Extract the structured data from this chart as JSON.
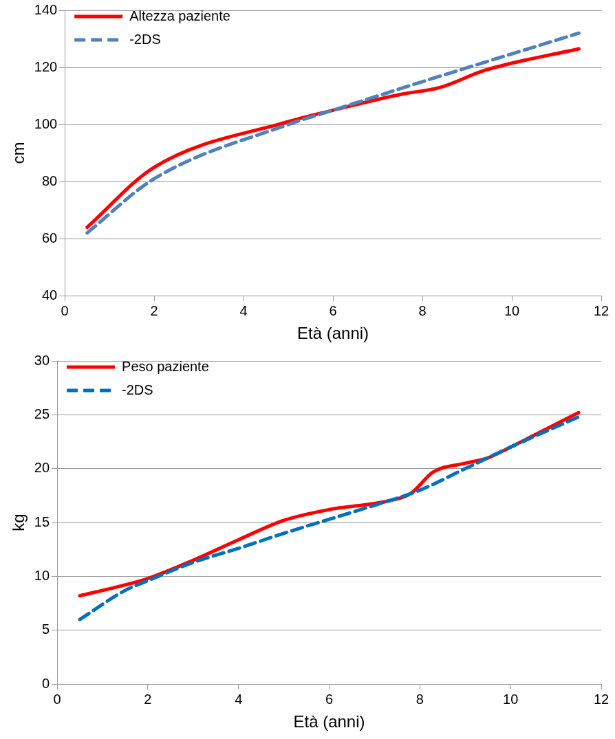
{
  "chart_data": [
    {
      "type": "line",
      "xlabel": "Età (anni)",
      "ylabel": "cm",
      "xlim": [
        0,
        12
      ],
      "xticks": [
        0,
        2,
        4,
        6,
        8,
        10,
        12
      ],
      "ylim": [
        40,
        140
      ],
      "yticks": [
        40,
        60,
        80,
        100,
        120,
        140
      ],
      "grid": "y",
      "legend": "top left",
      "marker": "none",
      "series": [
        {
          "name": "Altezza paziente",
          "color": "#ff0000",
          "line_style": "solid",
          "x": [
            0.5,
            2,
            5,
            6,
            7.5,
            8.4,
            9.4,
            11.5
          ],
          "values": [
            64,
            85,
            101,
            105,
            110.5,
            113,
            119,
            126.5
          ]
        },
        {
          "name": "-2DS",
          "color": "#4f81bd",
          "line_style": "dashed",
          "x": [
            0.5,
            2,
            5,
            6,
            8,
            11.5
          ],
          "values": [
            62,
            81,
            100,
            105,
            115,
            132
          ]
        }
      ]
    },
    {
      "type": "line",
      "xlabel": "Età (anni)",
      "ylabel": "kg",
      "xlim": [
        0,
        12
      ],
      "xticks": [
        0,
        2,
        4,
        6,
        8,
        10,
        12
      ],
      "ylim": [
        0,
        30
      ],
      "yticks": [
        0,
        5,
        10,
        15,
        20,
        25,
        30
      ],
      "grid": "y",
      "legend": "top left",
      "marker": "none",
      "series": [
        {
          "name": "Peso paziente",
          "color": "#ff0000",
          "line_style": "solid",
          "x": [
            0.5,
            1.3,
            2,
            3,
            4,
            5,
            6,
            7.3,
            7.8,
            8.3,
            9,
            9.5,
            10,
            11.5
          ],
          "values": [
            8.2,
            9,
            9.8,
            11.5,
            13.4,
            15.2,
            16.2,
            17,
            17.7,
            19.7,
            20.5,
            21,
            22,
            25.2
          ]
        },
        {
          "name": "-2DS",
          "color": "#0070c0",
          "line_style": "dashed",
          "x": [
            0.5,
            1.5,
            2,
            3,
            4,
            5,
            6,
            7,
            8,
            9,
            10,
            11.5
          ],
          "values": [
            6,
            8.7,
            9.6,
            11.3,
            12.6,
            14,
            15.3,
            16.6,
            18,
            20,
            22,
            24.8
          ]
        }
      ]
    }
  ]
}
